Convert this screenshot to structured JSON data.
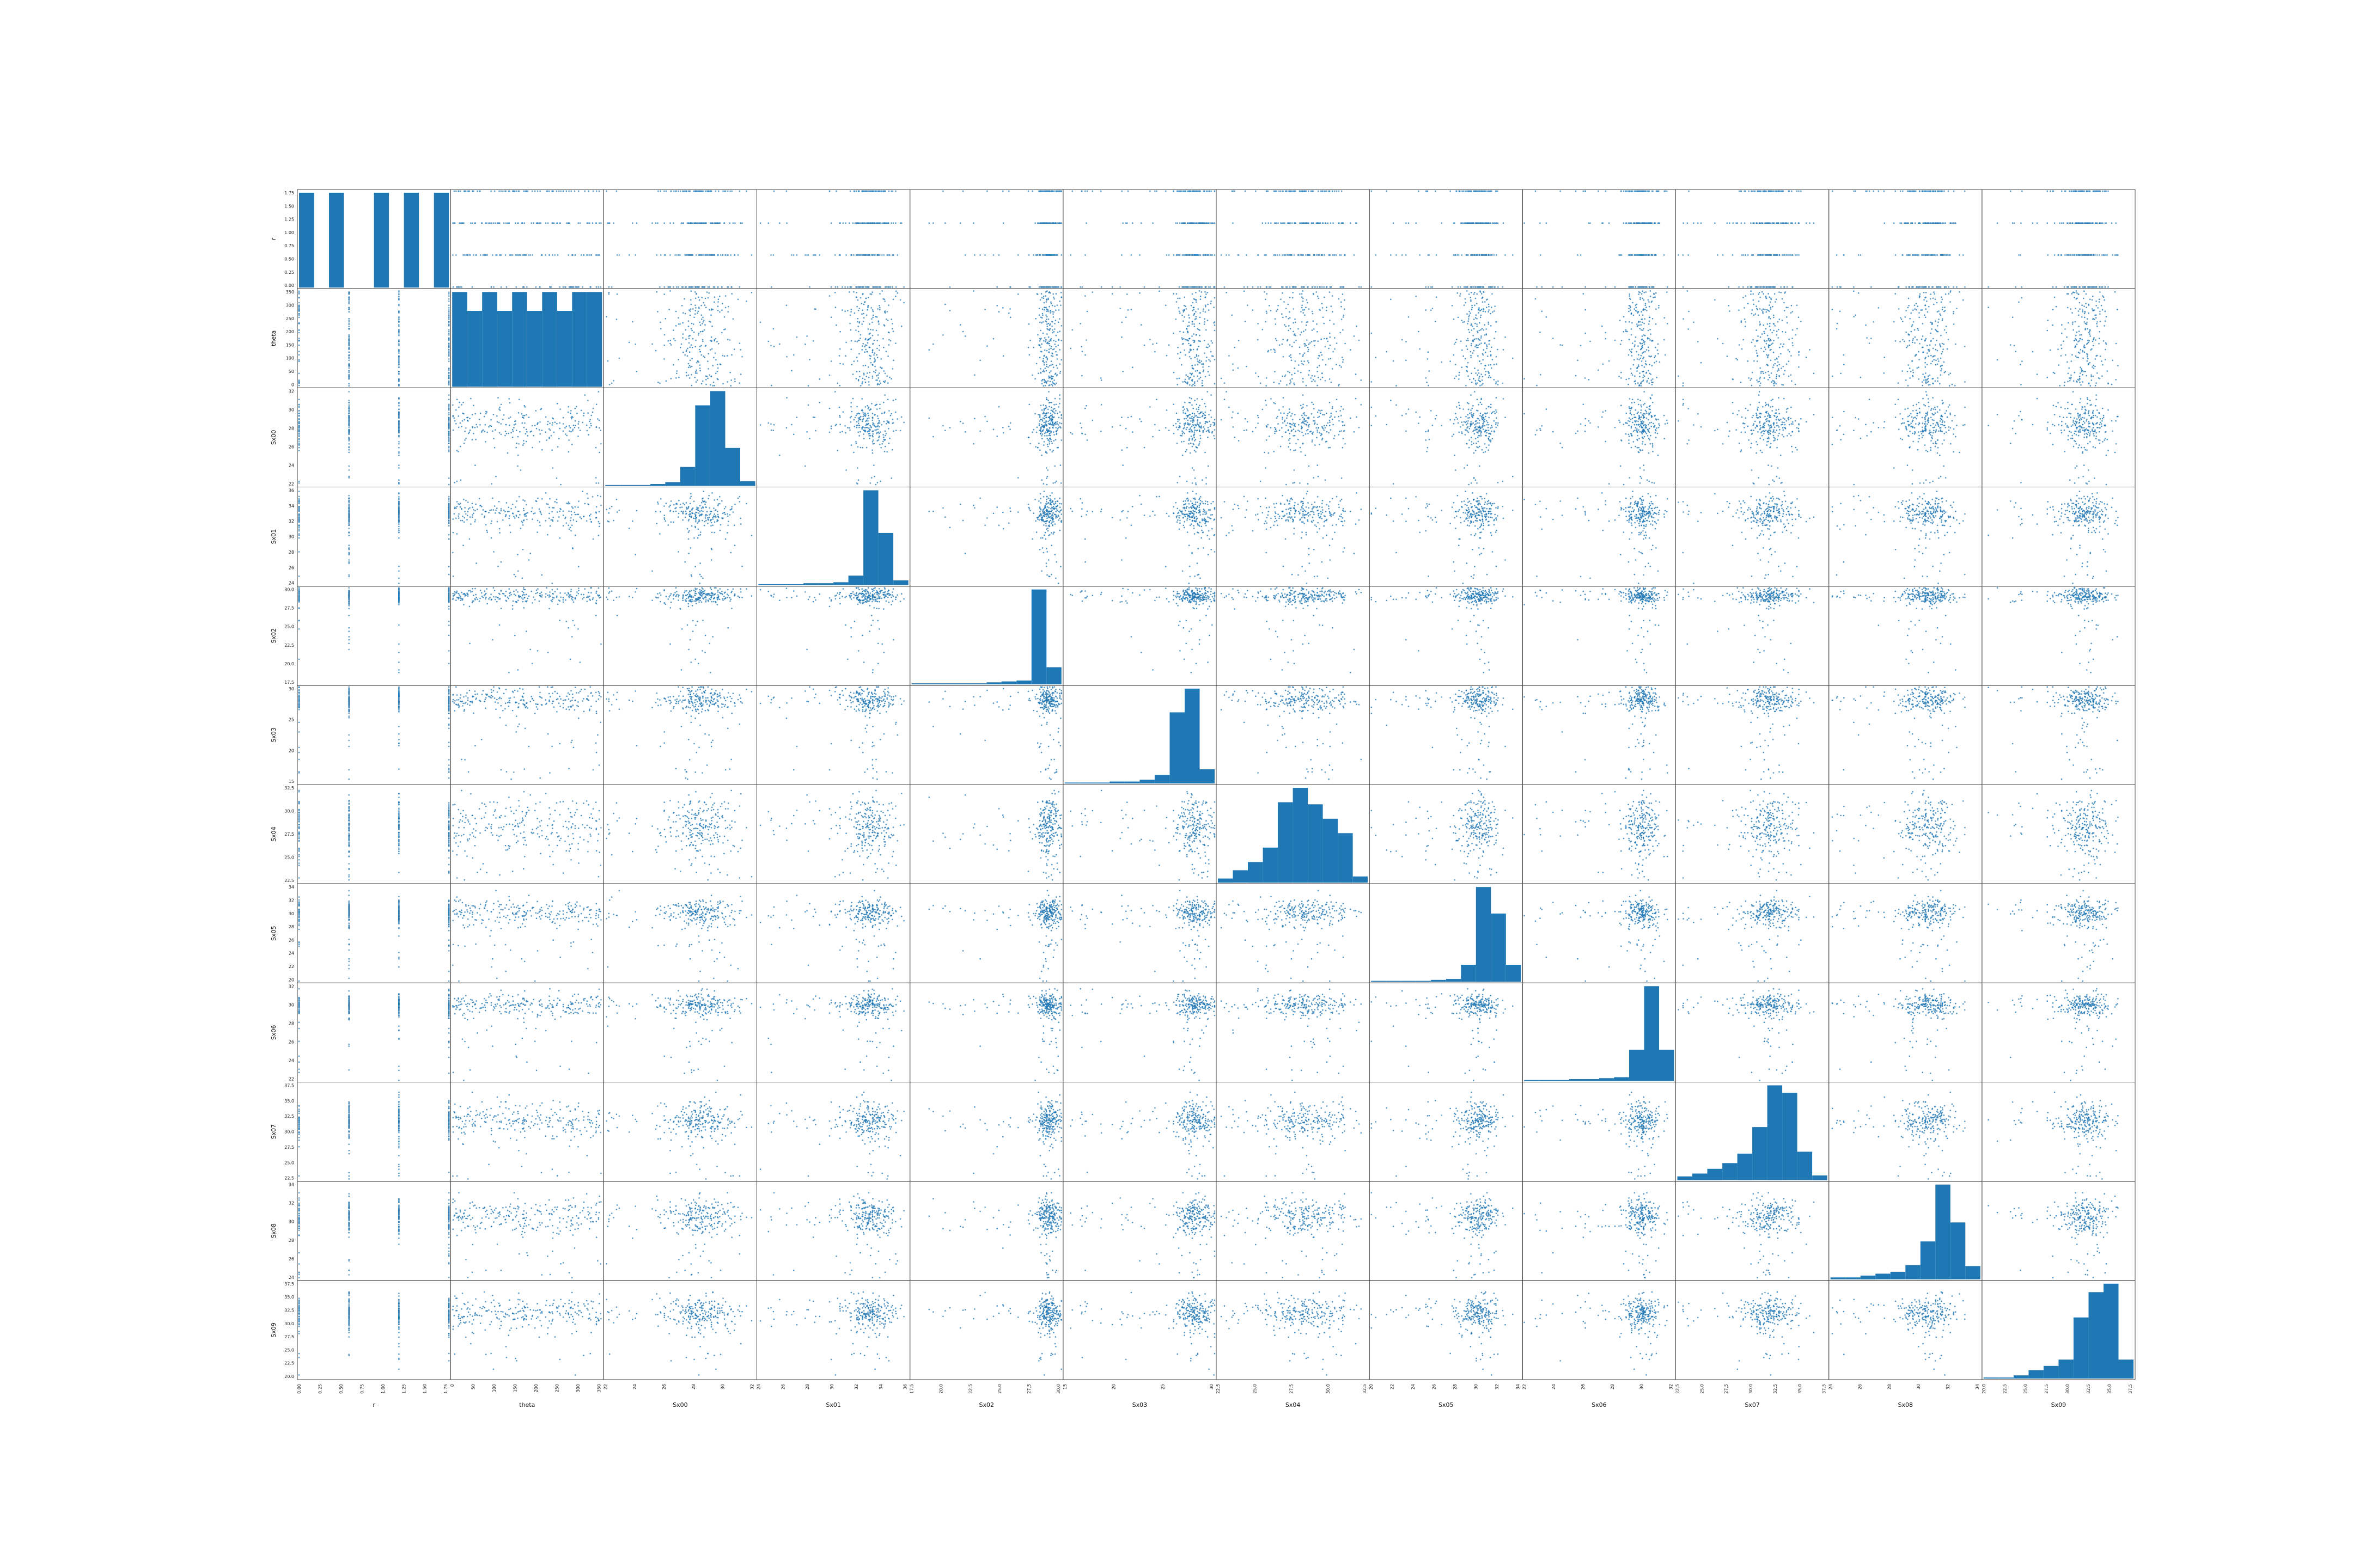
{
  "colors": {
    "marker": "#1f77b4",
    "axes": "#444444",
    "background": "#ffffff"
  },
  "chart_data": {
    "type": "scatter",
    "kind": "scatter-matrix",
    "diagonal": "histogram",
    "grid": false,
    "legend": "none",
    "variables": [
      "r",
      "theta",
      "Sx00",
      "Sx01",
      "Sx02",
      "Sx03",
      "Sx04",
      "Sx05",
      "Sx06",
      "Sx07",
      "Sx08",
      "Sx09"
    ],
    "axes": {
      "r": {
        "range": [
          0.0,
          1.8
        ],
        "ticks": [
          "0.00",
          "0.25",
          "0.50",
          "0.75",
          "1.00",
          "1.25",
          "1.50",
          "1.75"
        ],
        "levels": [
          0.0,
          0.6,
          1.2,
          1.8
        ],
        "distribution": "discrete"
      },
      "theta": {
        "range": [
          0,
          360
        ],
        "ticks": [
          "0",
          "50",
          "100",
          "150",
          "200",
          "250",
          "300",
          "350"
        ],
        "distribution": "uniform"
      },
      "Sx00": {
        "range": [
          20,
          33
        ],
        "ticks": [
          "22",
          "24",
          "26",
          "28",
          "30",
          "32"
        ],
        "center": 28.5,
        "spread": 1.4
      },
      "Sx01": {
        "range": [
          22,
          36
        ],
        "ticks": [
          "24",
          "26",
          "28",
          "30",
          "32",
          "34",
          "36"
        ],
        "center": 32.5,
        "spread": 1.3
      },
      "Sx02": {
        "range": [
          15,
          31.5
        ],
        "ticks": [
          "17.5",
          "20.0",
          "22.5",
          "25.0",
          "27.5",
          "30.0"
        ],
        "center": 30.0,
        "spread": 0.7
      },
      "Sx03": {
        "range": [
          15,
          30.5
        ],
        "ticks": [
          "15",
          "20",
          "25",
          "30"
        ],
        "center": 28.5,
        "spread": 1.0
      },
      "Sx04": {
        "range": [
          21,
          33
        ],
        "ticks": [
          "22.5",
          "25.0",
          "27.5",
          "30.0",
          "32.5"
        ],
        "center": 28.0,
        "spread": 1.8
      },
      "Sx05": {
        "range": [
          18,
          36
        ],
        "ticks": [
          "20",
          "22",
          "24",
          "26",
          "28",
          "30",
          "32",
          "34"
        ],
        "center": 31.0,
        "spread": 1.2
      },
      "Sx06": {
        "range": [
          20,
          34
        ],
        "ticks": [
          "22",
          "24",
          "26",
          "28",
          "30",
          "32"
        ],
        "center": 31.0,
        "spread": 0.8
      },
      "Sx07": {
        "range": [
          21,
          37.5
        ],
        "ticks": [
          "22.5",
          "25.0",
          "27.5",
          "30.0",
          "32.5",
          "35.0",
          "37.5"
        ],
        "center": 31.0,
        "spread": 1.6
      },
      "Sx08": {
        "range": [
          22,
          34
        ],
        "ticks": [
          "24",
          "26",
          "28",
          "30",
          "32",
          "34"
        ],
        "center": 30.0,
        "spread": 1.1
      },
      "Sx09": {
        "range": [
          20,
          37.5
        ],
        "ticks": [
          "20.0",
          "22.5",
          "25.0",
          "27.5",
          "30.0",
          "32.5",
          "35.0",
          "37.5"
        ],
        "center": 32.0,
        "spread": 1.4
      }
    },
    "diagonal_histograms": {
      "r": [
        10,
        0,
        10,
        0,
        0,
        10,
        0,
        10,
        0,
        10
      ],
      "theta": [
        10,
        8,
        10,
        8,
        10,
        8,
        10,
        8,
        10,
        10
      ],
      "Sx00": [
        1,
        1,
        1,
        2,
        4,
        20,
        85,
        100,
        40,
        5
      ],
      "Sx01": [
        1,
        1,
        1,
        2,
        2,
        3,
        10,
        100,
        55,
        5
      ],
      "Sx02": [
        1,
        1,
        1,
        1,
        1,
        2,
        3,
        4,
        100,
        18
      ],
      "Sx03": [
        1,
        1,
        1,
        2,
        2,
        4,
        9,
        75,
        100,
        15
      ],
      "Sx04": [
        4,
        12,
        20,
        34,
        78,
        92,
        76,
        62,
        48,
        6
      ],
      "Sx05": [
        1,
        1,
        1,
        1,
        2,
        3,
        18,
        100,
        72,
        18
      ],
      "Sx06": [
        1,
        1,
        1,
        2,
        2,
        3,
        4,
        33,
        100,
        33
      ],
      "Sx07": [
        4,
        7,
        12,
        18,
        28,
        56,
        100,
        92,
        30,
        5
      ],
      "Sx08": [
        2,
        2,
        4,
        6,
        8,
        15,
        40,
        100,
        60,
        14
      ],
      "Sx09": [
        1,
        1,
        3,
        8,
        12,
        18,
        58,
        82,
        90,
        18
      ]
    }
  }
}
